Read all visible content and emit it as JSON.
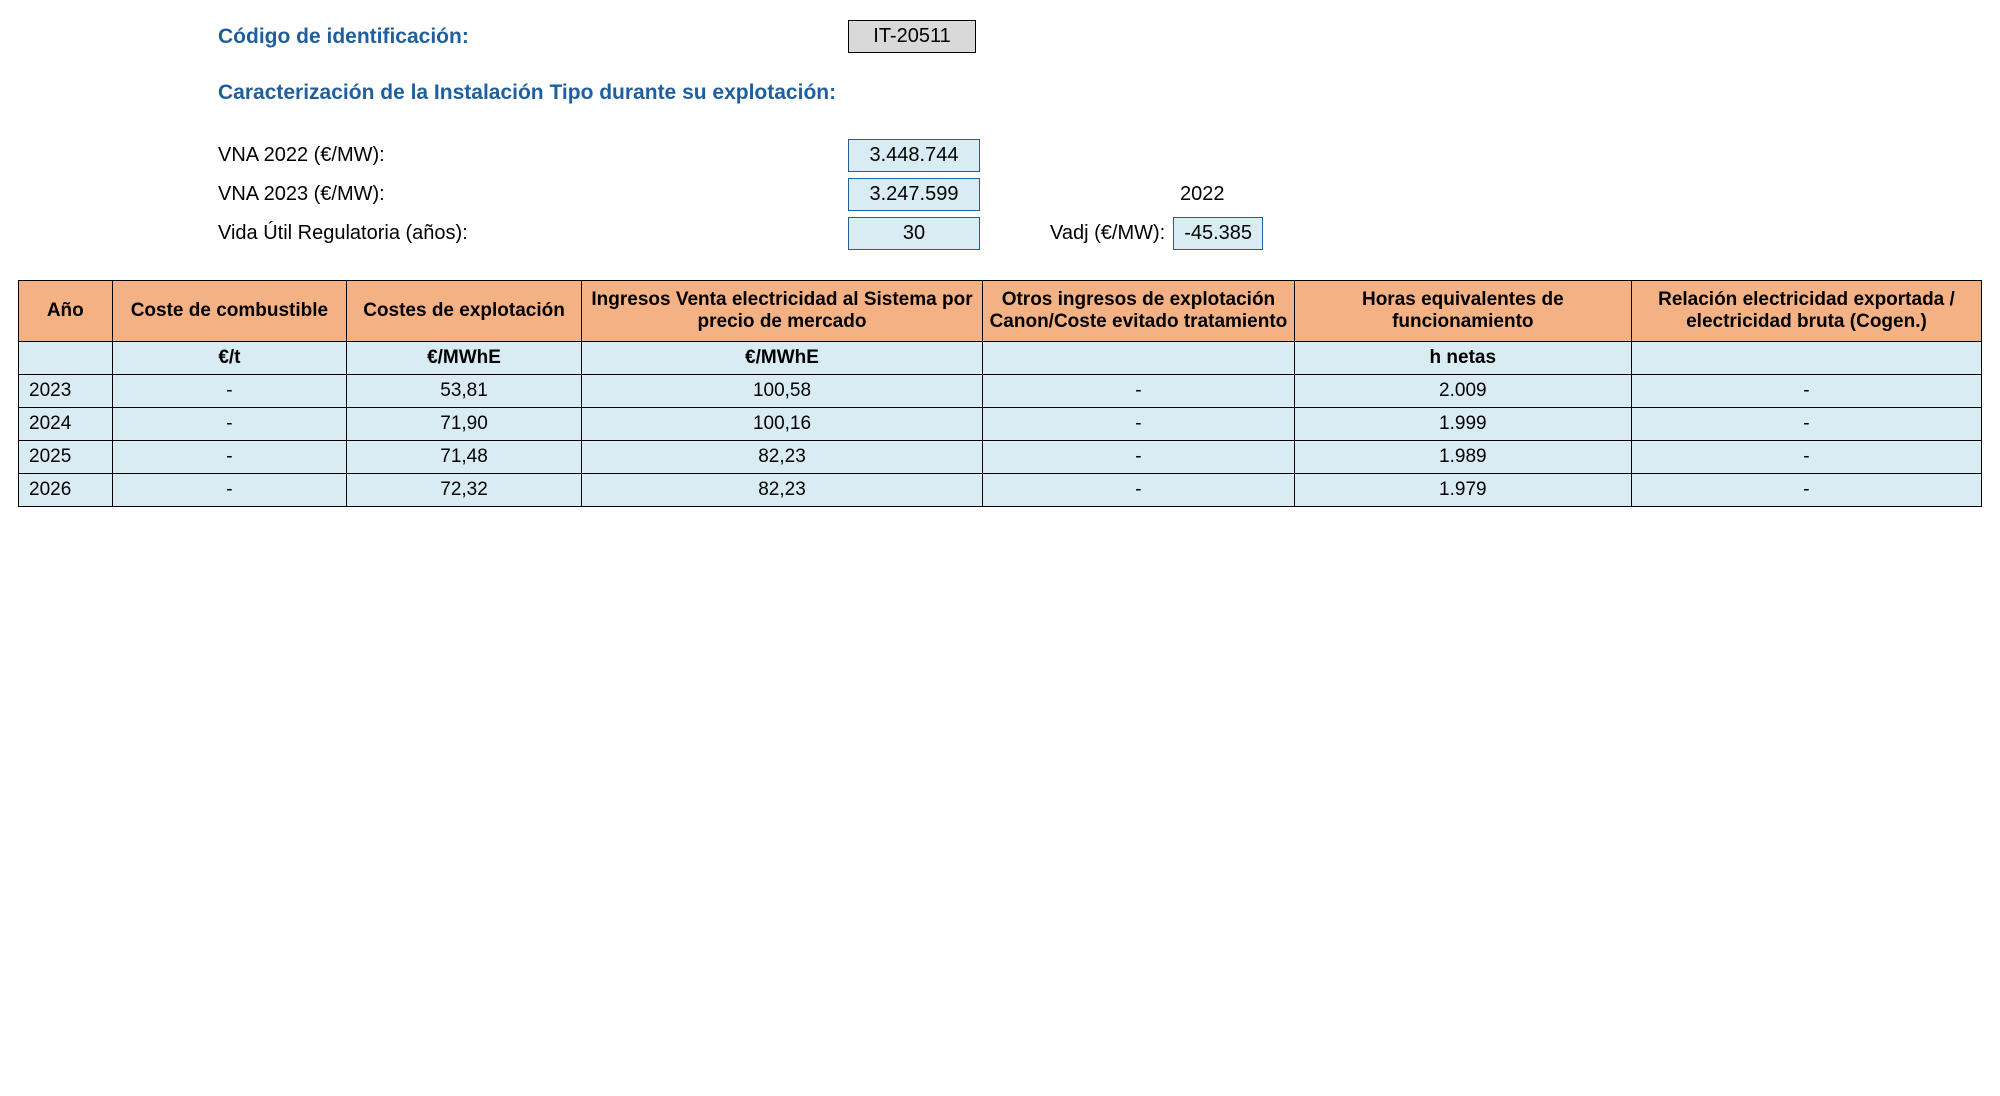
{
  "header": {
    "code_label": "Código de identificación:",
    "code_value": "IT-20511",
    "subheading": "Caracterización de la Instalación Tipo durante su explotación:"
  },
  "params": {
    "vna2022_label": "VNA 2022 (€/MW):",
    "vna2022_value": "3.448.744",
    "vna2023_label": "VNA 2023 (€/MW):",
    "vna2023_value": "3.247.599",
    "year_ref": "2022",
    "vida_label": "Vida Útil Regulatoria (años):",
    "vida_value": "30",
    "vadj_label": "Vadj (€/MW):",
    "vadj_value": "-45.385"
  },
  "table": {
    "columns": [
      "Año",
      "Coste de combustible",
      "Costes de explotación",
      "Ingresos Venta electricidad al Sistema por precio de mercado",
      "Otros ingresos de explotación Canon/Coste evitado tratamiento",
      "Horas equivalentes de funcionamiento",
      "Relación electricidad exportada / electricidad bruta\n(Cogen.)"
    ],
    "units": [
      "",
      "€/t",
      "€/MWhE",
      "€/MWhE",
      "",
      "h netas",
      ""
    ],
    "rows": [
      [
        "2023",
        "-",
        "53,81",
        "100,58",
        "-",
        "2.009",
        "-"
      ],
      [
        "2024",
        "-",
        "71,90",
        "100,16",
        "-",
        "1.999",
        "-"
      ],
      [
        "2025",
        "-",
        "71,48",
        "82,23",
        "-",
        "1.989",
        "-"
      ],
      [
        "2026",
        "-",
        "72,32",
        "82,23",
        "-",
        "1.979",
        "-"
      ]
    ],
    "header_bg": "#f4b183",
    "cell_bg": "#d9ebf3",
    "border_color": "#000000"
  }
}
